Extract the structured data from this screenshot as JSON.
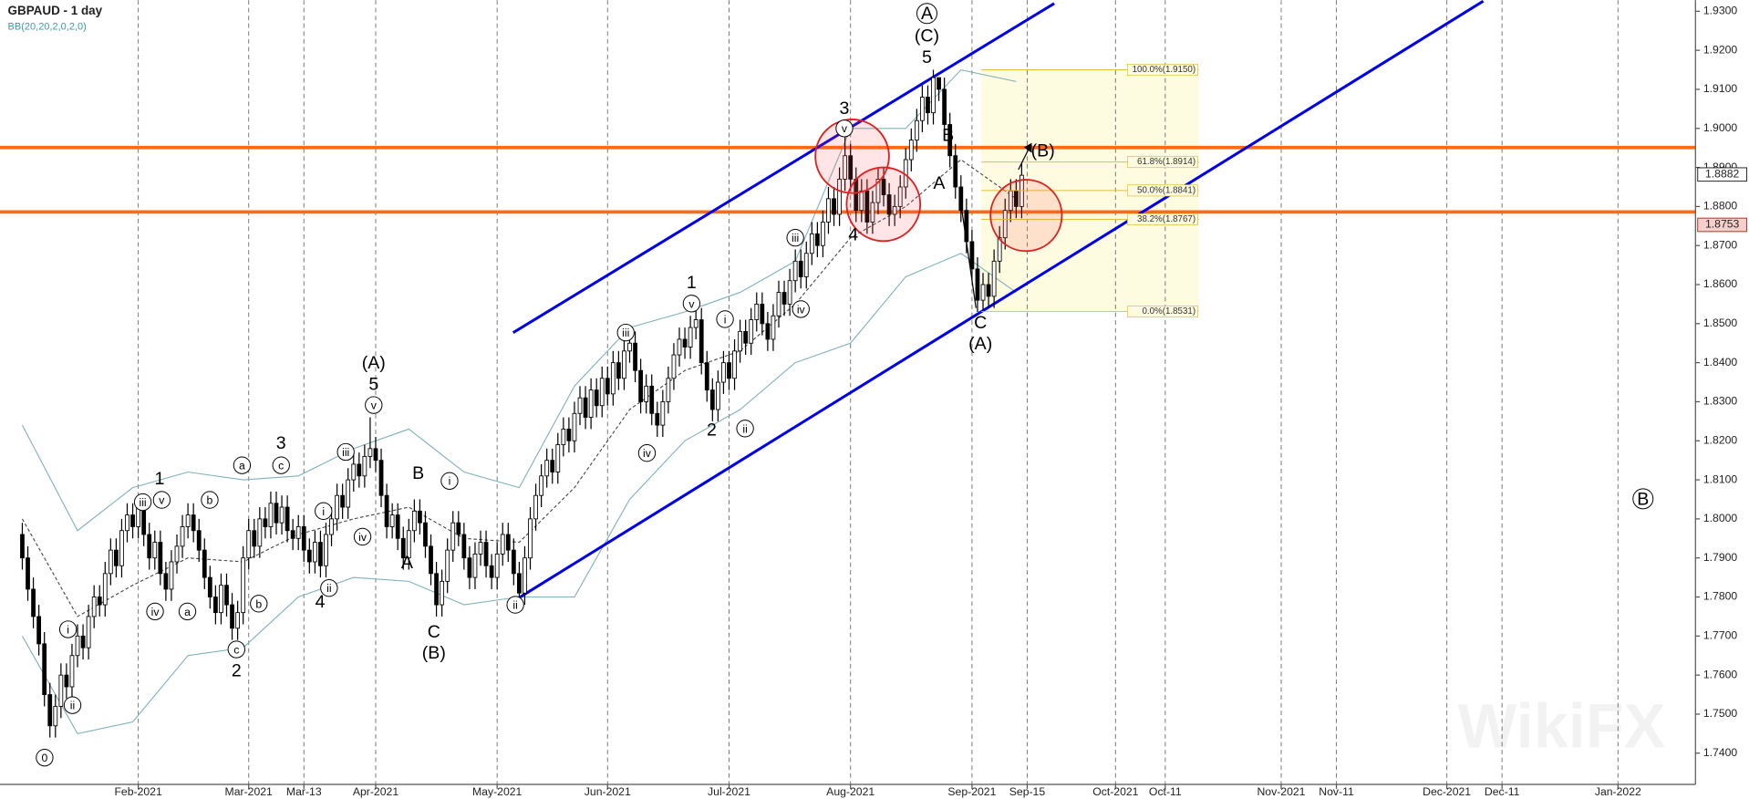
{
  "chart_data": {
    "type": "candlestick",
    "title": "GBPAUD - 1 day",
    "subtitle": "BB(20,20,2,0,2,0)",
    "watermark": "WikiFX",
    "xlim": [
      -4.04,
      303.03
    ],
    "ylim": [
      1.732,
      1.93286
    ],
    "xticks": [
      {
        "value": 21,
        "label": "Feb-2021"
      },
      {
        "value": 41,
        "label": "Mar-2021"
      },
      {
        "value": 51,
        "label": "Mar-13"
      },
      {
        "value": 64,
        "label": "Apr-2021"
      },
      {
        "value": 86,
        "label": "May-2021"
      },
      {
        "value": 106,
        "label": "Jun-2021"
      },
      {
        "value": 128,
        "label": "Jul-2021"
      },
      {
        "value": 150,
        "label": "Aug-2021"
      },
      {
        "value": 172,
        "label": "Sep-2021"
      },
      {
        "value": 182,
        "label": "Sep-15"
      },
      {
        "value": 198,
        "label": "Oct-2021"
      },
      {
        "value": 207,
        "label": "Oct-11"
      },
      {
        "value": 228,
        "label": "Nov-2021"
      },
      {
        "value": 238,
        "label": "Nov-11"
      },
      {
        "value": 258,
        "label": "Dec-2021"
      },
      {
        "value": 268,
        "label": "Dec-11"
      },
      {
        "value": 289,
        "label": "Jan-2022"
      }
    ],
    "yticks": [
      {
        "value": 1.74,
        "label": "1.7400"
      },
      {
        "value": 1.75,
        "label": "1.7500"
      },
      {
        "value": 1.76,
        "label": "1.7600"
      },
      {
        "value": 1.77,
        "label": "1.7700"
      },
      {
        "value": 1.78,
        "label": "1.7800"
      },
      {
        "value": 1.79,
        "label": "1.7900"
      },
      {
        "value": 1.8,
        "label": "1.8000"
      },
      {
        "value": 1.81,
        "label": "1.8100"
      },
      {
        "value": 1.82,
        "label": "1.8200"
      },
      {
        "value": 1.83,
        "label": "1.8300"
      },
      {
        "value": 1.84,
        "label": "1.8400"
      },
      {
        "value": 1.85,
        "label": "1.8500"
      },
      {
        "value": 1.86,
        "label": "1.8600"
      },
      {
        "value": 1.87,
        "label": "1.8700"
      },
      {
        "value": 1.88,
        "label": "1.8800"
      },
      {
        "value": 1.89,
        "label": "1.8900"
      },
      {
        "value": 1.9,
        "label": "1.9000"
      },
      {
        "value": 1.91,
        "label": "1.9100"
      },
      {
        "value": 1.92,
        "label": "1.9200"
      },
      {
        "value": 1.93,
        "label": "1.9300"
      }
    ],
    "x": [
      0,
      1,
      2,
      3,
      4,
      5,
      6,
      7,
      8,
      9,
      10,
      11,
      12,
      13,
      14,
      15,
      16,
      17,
      18,
      19,
      20,
      21,
      22,
      23,
      24,
      25,
      26,
      27,
      28,
      29,
      30,
      31,
      32,
      33,
      34,
      35,
      36,
      37,
      38,
      39,
      40,
      41,
      42,
      43,
      44,
      45,
      46,
      47,
      48,
      49,
      50,
      51,
      52,
      53,
      54,
      55,
      56,
      57,
      58,
      59,
      60,
      61,
      62,
      63,
      64,
      65,
      66,
      67,
      68,
      69,
      70,
      71,
      72,
      73,
      74,
      75,
      76,
      77,
      78,
      79,
      80,
      81,
      82,
      83,
      84,
      85,
      86,
      87,
      88,
      89,
      90,
      91,
      92,
      93,
      94,
      95,
      96,
      97,
      98,
      99,
      100,
      101,
      102,
      103,
      104,
      105,
      106,
      107,
      108,
      109,
      110,
      111,
      112,
      113,
      114,
      115,
      116,
      117,
      118,
      119,
      120,
      121,
      122,
      123,
      124,
      125,
      126,
      127,
      128,
      129,
      130,
      131,
      132,
      133,
      134,
      135,
      136,
      137,
      138,
      139,
      140,
      141,
      142,
      143,
      144,
      145,
      146,
      147,
      148,
      149,
      150,
      151,
      152,
      153,
      154,
      155,
      156,
      157,
      158,
      159,
      160,
      161,
      162,
      163,
      164,
      165,
      166,
      167,
      168,
      169,
      170,
      171,
      172,
      173,
      174,
      175,
      176,
      177,
      178,
      179,
      180,
      181
    ],
    "open": [
      1.796,
      1.79,
      1.782,
      1.775,
      1.768,
      1.755,
      1.747,
      1.752,
      1.76,
      1.757,
      1.765,
      1.77,
      1.767,
      1.775,
      1.78,
      1.778,
      1.786,
      1.792,
      1.788,
      1.797,
      1.801,
      1.798,
      1.803,
      1.796,
      1.79,
      1.794,
      1.786,
      1.782,
      1.789,
      1.793,
      1.798,
      1.801,
      1.797,
      1.792,
      1.785,
      1.78,
      1.776,
      1.783,
      1.778,
      1.772,
      1.776,
      1.79,
      1.797,
      1.793,
      1.8,
      1.798,
      1.804,
      1.799,
      1.803,
      1.797,
      1.795,
      1.798,
      1.792,
      1.789,
      1.794,
      1.788,
      1.796,
      1.8,
      1.806,
      1.803,
      1.81,
      1.814,
      1.811,
      1.816,
      1.818,
      1.815,
      1.806,
      1.798,
      1.801,
      1.795,
      1.79,
      1.797,
      1.802,
      1.799,
      1.793,
      1.786,
      1.778,
      1.784,
      1.792,
      1.799,
      1.796,
      1.79,
      1.785,
      1.791,
      1.794,
      1.788,
      1.785,
      1.791,
      1.796,
      1.792,
      1.786,
      1.781,
      1.79,
      1.8,
      1.806,
      1.811,
      1.815,
      1.812,
      1.819,
      1.823,
      1.82,
      1.827,
      1.831,
      1.826,
      1.833,
      1.829,
      1.836,
      1.832,
      1.84,
      1.836,
      1.843,
      1.845,
      1.838,
      1.83,
      1.834,
      1.827,
      1.824,
      1.83,
      1.836,
      1.842,
      1.846,
      1.844,
      1.849,
      1.851,
      1.84,
      1.833,
      1.828,
      1.835,
      1.84,
      1.836,
      1.843,
      1.848,
      1.845,
      1.851,
      1.855,
      1.85,
      1.846,
      1.852,
      1.858,
      1.855,
      1.861,
      1.866,
      1.862,
      1.868,
      1.873,
      1.87,
      1.876,
      1.882,
      1.878,
      1.887,
      1.893,
      1.887,
      1.879,
      1.884,
      1.876,
      1.881,
      1.887,
      1.883,
      1.878,
      1.88,
      1.885,
      1.892,
      1.897,
      1.902,
      1.908,
      1.904,
      1.913,
      1.91,
      1.901,
      1.893,
      1.885,
      1.879,
      1.871,
      1.864,
      1.856,
      1.86,
      1.857,
      1.866,
      1.872,
      1.879,
      1.884,
      1.88
    ],
    "high": [
      1.799,
      1.793,
      1.785,
      1.778,
      1.771,
      1.758,
      1.755,
      1.763,
      1.763,
      1.768,
      1.773,
      1.773,
      1.778,
      1.783,
      1.783,
      1.789,
      1.795,
      1.795,
      1.8,
      1.804,
      1.804,
      1.806,
      1.806,
      1.799,
      1.797,
      1.797,
      1.789,
      1.792,
      1.796,
      1.801,
      1.804,
      1.804,
      1.8,
      1.795,
      1.788,
      1.783,
      1.786,
      1.786,
      1.781,
      1.779,
      1.793,
      1.8,
      1.8,
      1.803,
      1.803,
      1.807,
      1.807,
      1.806,
      1.806,
      1.8,
      1.801,
      1.801,
      1.795,
      1.797,
      1.797,
      1.799,
      1.803,
      1.809,
      1.809,
      1.813,
      1.817,
      1.817,
      1.819,
      1.826,
      1.821,
      1.818,
      1.809,
      1.804,
      1.804,
      1.798,
      1.8,
      1.805,
      1.805,
      1.802,
      1.796,
      1.789,
      1.787,
      1.795,
      1.802,
      1.802,
      1.799,
      1.793,
      1.794,
      1.797,
      1.797,
      1.791,
      1.794,
      1.799,
      1.799,
      1.795,
      1.789,
      1.793,
      1.803,
      1.809,
      1.814,
      1.818,
      1.818,
      1.822,
      1.826,
      1.826,
      1.83,
      1.834,
      1.834,
      1.836,
      1.836,
      1.839,
      1.839,
      1.843,
      1.843,
      1.846,
      1.848,
      1.848,
      1.841,
      1.837,
      1.837,
      1.83,
      1.833,
      1.839,
      1.845,
      1.849,
      1.849,
      1.852,
      1.854,
      1.854,
      1.843,
      1.836,
      1.838,
      1.843,
      1.843,
      1.846,
      1.851,
      1.851,
      1.854,
      1.858,
      1.858,
      1.853,
      1.855,
      1.861,
      1.861,
      1.864,
      1.869,
      1.869,
      1.871,
      1.876,
      1.876,
      1.879,
      1.885,
      1.885,
      1.89,
      1.898,
      1.896,
      1.89,
      1.887,
      1.887,
      1.884,
      1.89,
      1.89,
      1.886,
      1.883,
      1.888,
      1.895,
      1.9,
      1.905,
      1.911,
      1.911,
      1.915,
      1.913,
      1.913,
      1.904,
      1.896,
      1.888,
      1.882,
      1.874,
      1.867,
      1.863,
      1.863,
      1.869,
      1.875,
      1.882,
      1.887,
      1.887,
      1.891
    ],
    "low": [
      1.787,
      1.779,
      1.772,
      1.765,
      1.752,
      1.744,
      1.744,
      1.749,
      1.754,
      1.754,
      1.762,
      1.764,
      1.764,
      1.772,
      1.775,
      1.775,
      1.783,
      1.785,
      1.785,
      1.794,
      1.795,
      1.795,
      1.793,
      1.787,
      1.787,
      1.783,
      1.779,
      1.779,
      1.786,
      1.79,
      1.795,
      1.794,
      1.789,
      1.782,
      1.777,
      1.773,
      1.773,
      1.775,
      1.769,
      1.769,
      1.773,
      1.787,
      1.79,
      1.79,
      1.795,
      1.795,
      1.796,
      1.796,
      1.794,
      1.792,
      1.792,
      1.789,
      1.786,
      1.786,
      1.785,
      1.785,
      1.793,
      1.797,
      1.8,
      1.8,
      1.807,
      1.808,
      1.808,
      1.813,
      1.812,
      1.803,
      1.795,
      1.795,
      1.792,
      1.787,
      1.787,
      1.794,
      1.796,
      1.79,
      1.783,
      1.775,
      1.775,
      1.781,
      1.789,
      1.793,
      1.787,
      1.782,
      1.782,
      1.788,
      1.785,
      1.782,
      1.782,
      1.788,
      1.789,
      1.783,
      1.778,
      1.778,
      1.787,
      1.797,
      1.803,
      1.808,
      1.809,
      1.809,
      1.816,
      1.817,
      1.817,
      1.824,
      1.823,
      1.823,
      1.826,
      1.826,
      1.829,
      1.829,
      1.833,
      1.833,
      1.84,
      1.835,
      1.827,
      1.827,
      1.824,
      1.821,
      1.821,
      1.827,
      1.833,
      1.839,
      1.841,
      1.841,
      1.846,
      1.837,
      1.83,
      1.825,
      1.825,
      1.832,
      1.833,
      1.833,
      1.84,
      1.842,
      1.842,
      1.848,
      1.847,
      1.843,
      1.843,
      1.849,
      1.852,
      1.852,
      1.858,
      1.859,
      1.859,
      1.865,
      1.867,
      1.867,
      1.873,
      1.875,
      1.875,
      1.884,
      1.884,
      1.876,
      1.876,
      1.873,
      1.873,
      1.878,
      1.88,
      1.875,
      1.875,
      1.877,
      1.882,
      1.889,
      1.894,
      1.899,
      1.901,
      1.901,
      1.907,
      1.898,
      1.89,
      1.882,
      1.876,
      1.868,
      1.861,
      1.853,
      1.853,
      1.854,
      1.854,
      1.863,
      1.869,
      1.876,
      1.877,
      1.877
    ],
    "close": [
      1.79,
      1.782,
      1.775,
      1.768,
      1.755,
      1.747,
      1.752,
      1.76,
      1.757,
      1.765,
      1.77,
      1.767,
      1.775,
      1.78,
      1.778,
      1.786,
      1.792,
      1.788,
      1.797,
      1.801,
      1.798,
      1.803,
      1.796,
      1.79,
      1.794,
      1.786,
      1.782,
      1.789,
      1.793,
      1.798,
      1.801,
      1.797,
      1.792,
      1.785,
      1.78,
      1.776,
      1.783,
      1.778,
      1.772,
      1.776,
      1.79,
      1.797,
      1.793,
      1.8,
      1.798,
      1.804,
      1.799,
      1.803,
      1.797,
      1.795,
      1.798,
      1.792,
      1.789,
      1.794,
      1.788,
      1.796,
      1.8,
      1.806,
      1.803,
      1.81,
      1.814,
      1.811,
      1.816,
      1.818,
      1.815,
      1.806,
      1.798,
      1.801,
      1.795,
      1.79,
      1.797,
      1.802,
      1.799,
      1.793,
      1.786,
      1.778,
      1.784,
      1.792,
      1.799,
      1.796,
      1.79,
      1.785,
      1.791,
      1.794,
      1.788,
      1.785,
      1.791,
      1.796,
      1.792,
      1.786,
      1.781,
      1.79,
      1.8,
      1.806,
      1.811,
      1.815,
      1.812,
      1.819,
      1.823,
      1.82,
      1.827,
      1.831,
      1.826,
      1.833,
      1.829,
      1.836,
      1.832,
      1.84,
      1.836,
      1.843,
      1.845,
      1.838,
      1.83,
      1.834,
      1.827,
      1.824,
      1.83,
      1.836,
      1.842,
      1.846,
      1.844,
      1.849,
      1.851,
      1.84,
      1.833,
      1.828,
      1.835,
      1.84,
      1.836,
      1.843,
      1.848,
      1.845,
      1.851,
      1.855,
      1.85,
      1.846,
      1.852,
      1.858,
      1.855,
      1.861,
      1.866,
      1.862,
      1.868,
      1.873,
      1.87,
      1.876,
      1.882,
      1.878,
      1.887,
      1.893,
      1.887,
      1.879,
      1.884,
      1.876,
      1.881,
      1.887,
      1.883,
      1.878,
      1.88,
      1.885,
      1.892,
      1.897,
      1.902,
      1.908,
      1.904,
      1.913,
      1.91,
      1.901,
      1.893,
      1.885,
      1.879,
      1.871,
      1.864,
      1.856,
      1.86,
      1.857,
      1.866,
      1.872,
      1.879,
      1.884,
      1.88,
      1.888
    ],
    "bollinger": {
      "color": "#7fb2b8",
      "x": [
        0,
        10,
        20,
        30,
        40,
        50,
        60,
        70,
        80,
        90,
        100,
        110,
        120,
        130,
        140,
        150,
        160,
        170,
        180
      ],
      "upper": [
        1.824,
        1.797,
        1.808,
        1.812,
        1.81,
        1.811,
        1.818,
        1.823,
        1.812,
        1.808,
        1.834,
        1.849,
        1.853,
        1.858,
        1.866,
        1.9,
        1.9,
        1.915,
        1.912
      ],
      "middle": [
        1.8,
        1.775,
        1.783,
        1.79,
        1.789,
        1.796,
        1.8,
        1.803,
        1.795,
        1.794,
        1.808,
        1.828,
        1.838,
        1.843,
        1.855,
        1.872,
        1.88,
        1.892,
        1.882
      ],
      "lower": [
        1.77,
        1.745,
        1.748,
        1.765,
        1.767,
        1.78,
        1.785,
        1.784,
        1.778,
        1.78,
        1.78,
        1.805,
        1.82,
        1.828,
        1.84,
        1.845,
        1.862,
        1.868,
        1.858
      ]
    },
    "trendlines": [
      {
        "color": "#0000ee",
        "x": [
          88.9,
          186.9
        ],
        "y": [
          1.8477,
          1.932
        ]
      },
      {
        "color": "#0000ee",
        "x": [
          89.5,
          264.6
        ],
        "y": [
          1.7794,
          1.9326
        ]
      }
    ],
    "hlines": [
      {
        "color": "#ff6a13",
        "value": 1.8951
      },
      {
        "color": "#ff6a13",
        "value": 1.8786
      }
    ],
    "fib": {
      "x": [
        173.7,
        213.1
      ],
      "levels": [
        {
          "value": 1.915,
          "label": "100.0%(1.9150)"
        },
        {
          "value": 1.8914,
          "label": "61.8%(1.8914)"
        },
        {
          "value": 1.8841,
          "label": "50.0%(1.8841)"
        },
        {
          "value": 1.8767,
          "label": "38.2%(1.8767)"
        },
        {
          "value": 1.8531,
          "label": "0.0%(1.8531)"
        }
      ]
    },
    "price_markers": [
      1.8882,
      1.8753
    ],
    "annotations": [
      "0",
      "i",
      "ii",
      "1",
      "iii",
      "v",
      "iv",
      "a",
      "b",
      "a",
      "b",
      "c",
      "2",
      "3",
      "c",
      "i",
      "ii",
      "4",
      "iii",
      "iv",
      "(A)",
      "5",
      "v",
      "B",
      "A",
      "i",
      "C",
      "(B)",
      "ii",
      "iii",
      "iv",
      "1",
      "v",
      "i",
      "2",
      "ii",
      "iii",
      "iv",
      "3",
      "v",
      "4",
      "A",
      "(C)",
      "5",
      "B",
      "A",
      "C",
      "(A)",
      "(B)",
      "B"
    ]
  }
}
